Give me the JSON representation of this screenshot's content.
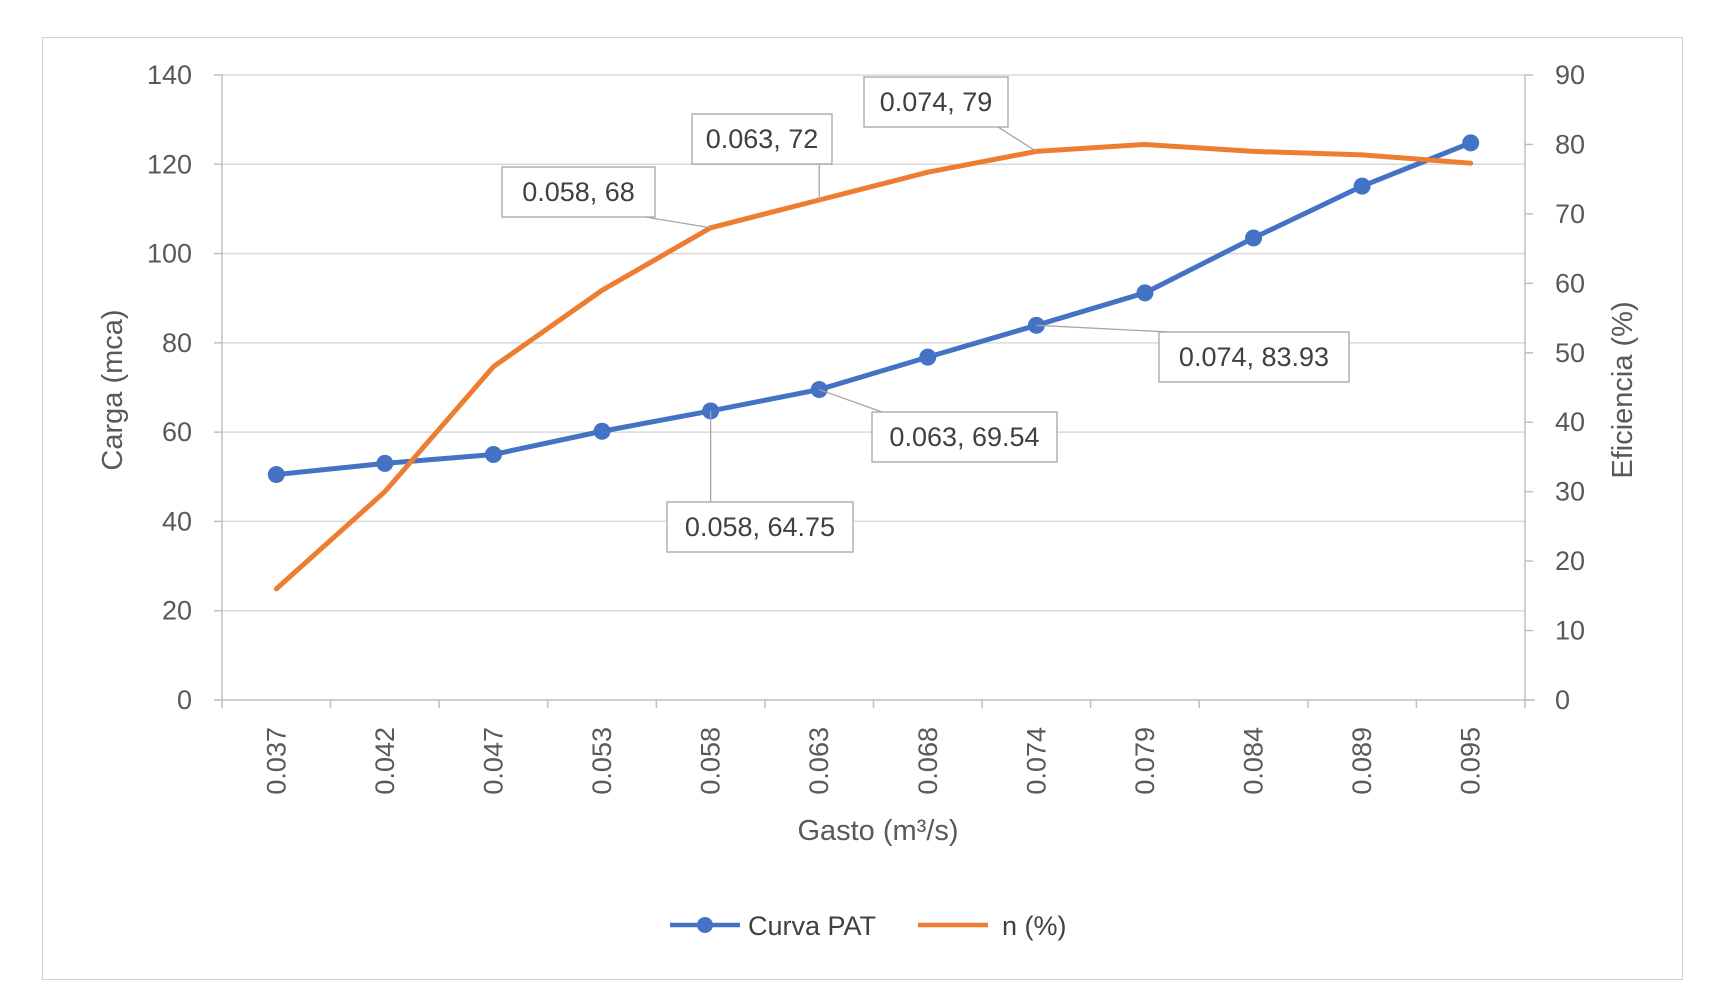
{
  "chart_data": {
    "type": "line",
    "categories": [
      "0.037",
      "0.042",
      "0.047",
      "0.053",
      "0.058",
      "0.063",
      "0.068",
      "0.074",
      "0.079",
      "0.084",
      "0.089",
      "0.095"
    ],
    "xlabel": "Gasto (m³/s)",
    "ylabel": "Carga (mca)",
    "y2label": "Eficiencia (%)",
    "ylim": [
      0,
      140
    ],
    "yticks": [
      0,
      20,
      40,
      60,
      80,
      100,
      120,
      140
    ],
    "y2lim": [
      0,
      90
    ],
    "y2ticks": [
      0,
      10,
      20,
      30,
      40,
      50,
      60,
      70,
      80,
      90
    ],
    "grid": true,
    "legend_position": "bottom",
    "series": [
      {
        "name": "Curva PAT",
        "axis": "left",
        "color": "#4472C4",
        "markers": true,
        "values": [
          50.5,
          53.0,
          55.0,
          60.2,
          64.75,
          69.54,
          76.8,
          83.93,
          91.2,
          103.5,
          115.1,
          124.8
        ]
      },
      {
        "name": "n (%)",
        "axis": "right",
        "color": "#ED7D31",
        "markers": false,
        "values": [
          16,
          30,
          48,
          59,
          68,
          72,
          76,
          79,
          80,
          79,
          78.5,
          77.3
        ]
      }
    ],
    "annotations": [
      {
        "series": 0,
        "index": 4,
        "text": "0.058, 64.75"
      },
      {
        "series": 0,
        "index": 5,
        "text": "0.063, 69.54"
      },
      {
        "series": 0,
        "index": 7,
        "text": "0.074, 83.93"
      },
      {
        "series": 1,
        "index": 4,
        "text": "0.058, 68"
      },
      {
        "series": 1,
        "index": 5,
        "text": "0.063, 72"
      },
      {
        "series": 1,
        "index": 7,
        "text": "0.074, 79"
      }
    ]
  }
}
